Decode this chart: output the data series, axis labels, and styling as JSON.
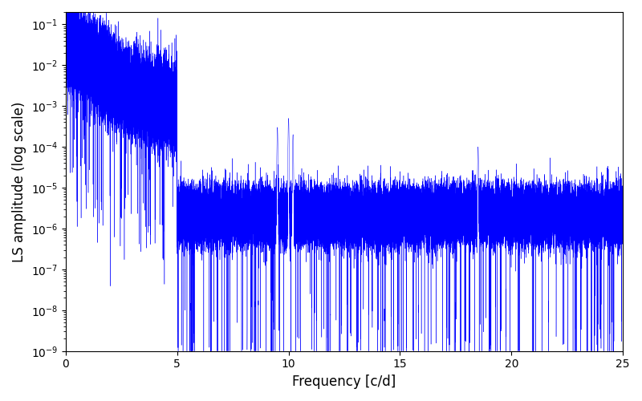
{
  "title": "",
  "xlabel": "Frequency [c/d]",
  "ylabel": "LS amplitude (log scale)",
  "xlim": [
    0,
    25
  ],
  "ylim_log": [
    1e-09,
    0.2
  ],
  "color": "#0000ff",
  "freq_max": 25.0,
  "n_points": 50000,
  "background_color": "#ffffff",
  "figsize": [
    8.0,
    5.0
  ],
  "dpi": 100
}
